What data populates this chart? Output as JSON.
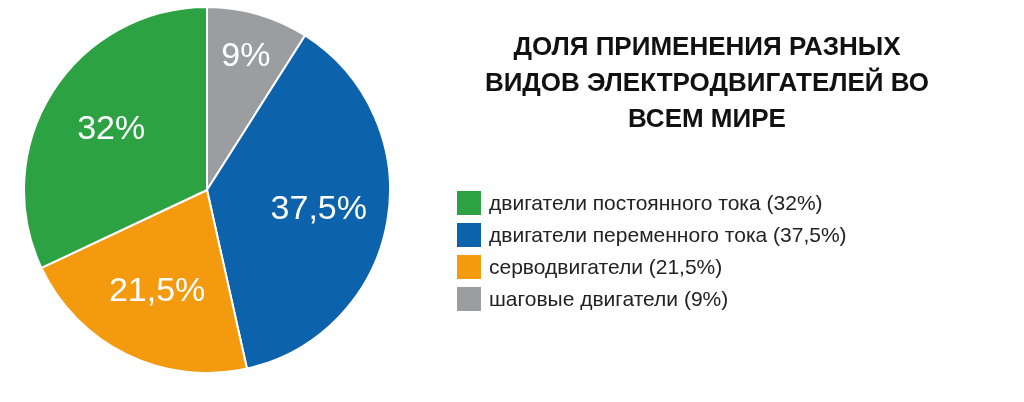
{
  "chart_data": {
    "type": "pie",
    "title": "ДОЛЯ ПРИМЕНЕНИЯ РАЗНЫХ ВИДОВ ЭЛЕКТРОДВИГАТЕЛЕЙ ВО ВСЕМ МИРЕ",
    "categories": [
      "шаговые двигатели (9%)",
      "двигатели переменного тока (37,5%)",
      "серводвигатели (21,5%)",
      "двигатели постоянного тока (32%)"
    ],
    "values": [
      9,
      37.5,
      21.5,
      32
    ],
    "value_labels": [
      "9%",
      "37,5%",
      "21,5%",
      "32%"
    ],
    "colors": [
      "#9b9da0",
      "#0d62ac",
      "#f39a0f",
      "#2ca243"
    ],
    "legend": "right"
  }
}
